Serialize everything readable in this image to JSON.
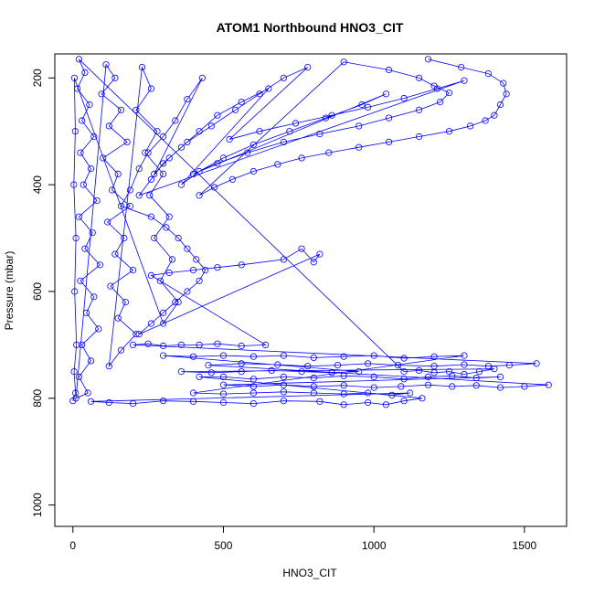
{
  "chart_data": {
    "type": "scatter",
    "title": "ATOM1 Northbound HNO3_CIT",
    "xlabel": "HNO3_CIT",
    "ylabel": "Pressure (mbar)",
    "xlim": [
      -60,
      1640
    ],
    "ylim": [
      1040,
      155
    ],
    "y_reversed": true,
    "x_ticks": [
      0,
      500,
      1000,
      1500
    ],
    "y_ticks": [
      200,
      400,
      600,
      800,
      1000
    ],
    "marker": "open-circle",
    "connected": true,
    "grid": false,
    "legend": "none",
    "colors": {
      "series": "#0000ff",
      "axis": "#000000"
    },
    "series": [
      {
        "points": [
          [
            1180,
            165
          ],
          [
            1290,
            180
          ],
          [
            1380,
            192
          ],
          [
            1430,
            210
          ],
          [
            1440,
            230
          ],
          [
            1420,
            250
          ],
          [
            1400,
            270
          ],
          [
            1370,
            280
          ],
          [
            1320,
            290
          ],
          [
            1250,
            300
          ],
          [
            1150,
            310
          ],
          [
            1050,
            320
          ],
          [
            950,
            330
          ],
          [
            850,
            340
          ],
          [
            760,
            350
          ],
          [
            680,
            362
          ],
          [
            600,
            375
          ],
          [
            530,
            390
          ],
          [
            470,
            405
          ],
          [
            420,
            420
          ],
          [
            900,
            170
          ],
          [
            1050,
            185
          ],
          [
            1150,
            200
          ],
          [
            1200,
            215
          ],
          [
            1250,
            228
          ],
          [
            1220,
            245
          ],
          [
            1150,
            260
          ],
          [
            1050,
            275
          ],
          [
            950,
            290
          ],
          [
            820,
            305
          ],
          [
            700,
            320
          ],
          [
            580,
            340
          ],
          [
            480,
            360
          ],
          [
            400,
            380
          ],
          [
            1040,
            230
          ],
          [
            960,
            250
          ],
          [
            840,
            275
          ],
          [
            720,
            300
          ],
          [
            600,
            325
          ],
          [
            500,
            350
          ],
          [
            420,
            375
          ],
          [
            360,
            400
          ],
          [
            650,
            220
          ],
          [
            560,
            245
          ],
          [
            480,
            270
          ],
          [
            420,
            300
          ],
          [
            360,
            330
          ],
          [
            300,
            360
          ],
          [
            260,
            390
          ],
          [
            220,
            420
          ],
          [
            1300,
            205
          ],
          [
            1210,
            220
          ],
          [
            1100,
            238
          ],
          [
            980,
            255
          ],
          [
            860,
            270
          ],
          [
            740,
            285
          ],
          [
            620,
            300
          ],
          [
            520,
            315
          ],
          [
            780,
            180
          ],
          [
            700,
            200
          ],
          [
            620,
            230
          ],
          [
            540,
            260
          ],
          [
            460,
            290
          ],
          [
            380,
            320
          ],
          [
            320,
            350
          ],
          [
            270,
            380
          ],
          [
            430,
            200
          ],
          [
            380,
            240
          ],
          [
            340,
            280
          ],
          [
            300,
            310
          ],
          [
            250,
            340
          ],
          [
            220,
            370
          ],
          [
            190,
            410
          ],
          [
            160,
            440
          ],
          [
            260,
            460
          ],
          [
            310,
            480
          ],
          [
            350,
            500
          ],
          [
            380,
            520
          ],
          [
            410,
            540
          ],
          [
            440,
            560
          ],
          [
            420,
            580
          ],
          [
            380,
            600
          ],
          [
            340,
            620
          ],
          [
            300,
            640
          ],
          [
            260,
            660
          ],
          [
            220,
            680
          ],
          [
            820,
            530
          ],
          [
            800,
            545
          ],
          [
            760,
            520
          ],
          [
            700,
            540
          ],
          [
            560,
            550
          ],
          [
            480,
            555
          ],
          [
            400,
            560
          ],
          [
            320,
            565
          ],
          [
            260,
            570
          ],
          [
            640,
            700
          ],
          [
            560,
            702
          ],
          [
            480,
            698
          ],
          [
            420,
            700
          ],
          [
            360,
            700
          ],
          [
            300,
            702
          ],
          [
            250,
            698
          ],
          [
            200,
            700
          ],
          [
            1540,
            735
          ],
          [
            1450,
            738
          ],
          [
            1380,
            740
          ],
          [
            1300,
            737
          ],
          [
            1200,
            740
          ],
          [
            1080,
            738
          ],
          [
            980,
            735
          ],
          [
            880,
            738
          ],
          [
            780,
            740
          ],
          [
            680,
            737
          ],
          [
            560,
            735
          ],
          [
            450,
            738
          ],
          [
            1580,
            775
          ],
          [
            1500,
            778
          ],
          [
            1420,
            780
          ],
          [
            1340,
            776
          ],
          [
            1260,
            778
          ],
          [
            1180,
            775
          ],
          [
            1090,
            778
          ],
          [
            1000,
            780
          ],
          [
            900,
            776
          ],
          [
            800,
            778
          ],
          [
            700,
            775
          ],
          [
            600,
            778
          ],
          [
            500,
            775
          ],
          [
            1420,
            760
          ],
          [
            1340,
            762
          ],
          [
            1260,
            758
          ],
          [
            1180,
            760
          ],
          [
            1100,
            764
          ],
          [
            1000,
            760
          ],
          [
            900,
            758
          ],
          [
            800,
            762
          ],
          [
            700,
            760
          ],
          [
            600,
            764
          ],
          [
            500,
            760
          ],
          [
            420,
            760
          ],
          [
            1160,
            800
          ],
          [
            1100,
            805
          ],
          [
            1040,
            812
          ],
          [
            980,
            808
          ],
          [
            900,
            812
          ],
          [
            820,
            806
          ],
          [
            700,
            805
          ],
          [
            600,
            810
          ],
          [
            500,
            808
          ],
          [
            400,
            806
          ],
          [
            300,
            805
          ],
          [
            200,
            810
          ],
          [
            120,
            808
          ],
          [
            60,
            806
          ],
          [
            1120,
            790
          ],
          [
            1060,
            794
          ],
          [
            980,
            790
          ],
          [
            900,
            792
          ],
          [
            800,
            790
          ],
          [
            700,
            788
          ],
          [
            600,
            790
          ],
          [
            500,
            792
          ],
          [
            400,
            790
          ],
          [
            1300,
            720
          ],
          [
            1200,
            722
          ],
          [
            1100,
            725
          ],
          [
            1000,
            720
          ],
          [
            900,
            722
          ],
          [
            800,
            724
          ],
          [
            700,
            720
          ],
          [
            600,
            722
          ],
          [
            500,
            720
          ],
          [
            400,
            722
          ],
          [
            300,
            720
          ],
          [
            950,
            750
          ],
          [
            860,
            752
          ],
          [
            760,
            750
          ],
          [
            660,
            748
          ],
          [
            560,
            750
          ],
          [
            460,
            752
          ],
          [
            360,
            750
          ],
          [
            1400,
            745
          ],
          [
            1350,
            750
          ],
          [
            1300,
            755
          ],
          [
            1250,
            750
          ],
          [
            1200,
            752
          ],
          [
            1150,
            748
          ],
          [
            1100,
            750
          ],
          [
            20,
            165
          ],
          [
            40,
            190
          ],
          [
            15,
            220
          ],
          [
            55,
            250
          ],
          [
            30,
            280
          ],
          [
            70,
            310
          ],
          [
            25,
            340
          ],
          [
            60,
            370
          ],
          [
            35,
            400
          ],
          [
            80,
            430
          ],
          [
            20,
            460
          ],
          [
            65,
            490
          ],
          [
            40,
            520
          ],
          [
            90,
            550
          ],
          [
            25,
            580
          ],
          [
            70,
            610
          ],
          [
            45,
            640
          ],
          [
            85,
            670
          ],
          [
            30,
            700
          ],
          [
            60,
            730
          ],
          [
            20,
            760
          ],
          [
            50,
            790
          ],
          [
            10,
            800
          ],
          [
            110,
            175
          ],
          [
            140,
            200
          ],
          [
            95,
            230
          ],
          [
            160,
            260
          ],
          [
            120,
            290
          ],
          [
            180,
            320
          ],
          [
            100,
            350
          ],
          [
            150,
            380
          ],
          [
            130,
            410
          ],
          [
            190,
            440
          ],
          [
            115,
            470
          ],
          [
            170,
            500
          ],
          [
            140,
            530
          ],
          [
            200,
            560
          ],
          [
            125,
            590
          ],
          [
            175,
            620
          ],
          [
            150,
            650
          ],
          [
            210,
            680
          ],
          [
            160,
            710
          ],
          [
            120,
            740
          ],
          [
            230,
            180
          ],
          [
            260,
            220
          ],
          [
            210,
            260
          ],
          [
            280,
            300
          ],
          [
            240,
            340
          ],
          [
            300,
            380
          ],
          [
            255,
            420
          ],
          [
            320,
            460
          ],
          [
            270,
            500
          ],
          [
            330,
            540
          ],
          [
            290,
            580
          ],
          [
            350,
            620
          ],
          [
            300,
            660
          ],
          [
            5,
            200
          ],
          [
            8,
            300
          ],
          [
            3,
            400
          ],
          [
            10,
            500
          ],
          [
            6,
            600
          ],
          [
            12,
            700
          ],
          [
            4,
            750
          ],
          [
            9,
            790
          ],
          [
            0,
            805
          ]
        ]
      }
    ]
  }
}
